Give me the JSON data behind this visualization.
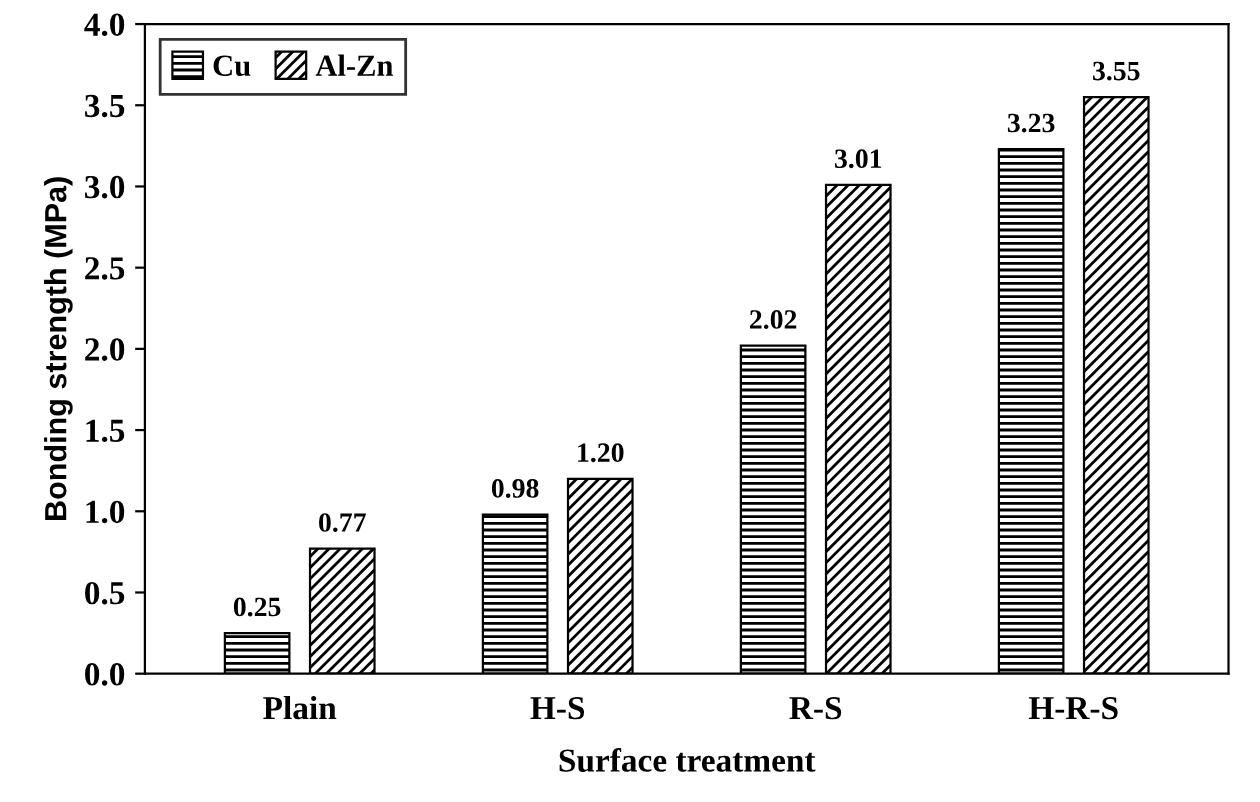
{
  "chart_data": {
    "type": "bar",
    "xlabel": "Surface treatment",
    "ylabel": "Bonding strength (MPa)",
    "categories": [
      "Plain",
      "H-S",
      "R-S",
      "H-R-S"
    ],
    "series": [
      {
        "name": "Cu",
        "color": "#000000",
        "values": [
          0.25,
          0.98,
          2.02,
          3.23
        ],
        "value_labels": [
          "0.25",
          "0.98",
          "2.02",
          "3.23"
        ]
      },
      {
        "name": "Al-Zn",
        "color": "#000000",
        "values": [
          0.77,
          1.2,
          3.01,
          3.55
        ],
        "value_labels": [
          "0.77",
          "1.20",
          "3.01",
          "3.55"
        ]
      }
    ],
    "ylim": [
      0,
      4
    ],
    "yticks": [
      {
        "value": 0,
        "label": "0.0"
      },
      {
        "value": 0.5,
        "label": "0.5"
      },
      {
        "value": 1,
        "label": "1.0"
      },
      {
        "value": 1.5,
        "label": "1.5"
      },
      {
        "value": 2,
        "label": "2.0"
      },
      {
        "value": 2.5,
        "label": "2.5"
      },
      {
        "value": 3,
        "label": "3.0"
      },
      {
        "value": 3.5,
        "label": "3.5"
      },
      {
        "value": 4,
        "label": "4.0"
      }
    ],
    "grid": false,
    "legend": "top left"
  }
}
